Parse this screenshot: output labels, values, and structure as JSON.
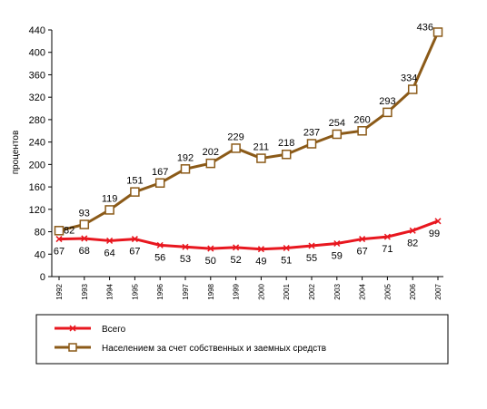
{
  "chart_data": {
    "type": "line",
    "title": "",
    "xlabel": "",
    "ylabel": "процентов",
    "x": [
      "1992",
      "1993",
      "1994",
      "1995",
      "1996",
      "1997",
      "1998",
      "1999",
      "2000",
      "2001",
      "2002",
      "2003",
      "2004",
      "2005",
      "2006",
      "2007"
    ],
    "y_ticks": [
      0,
      40,
      80,
      120,
      160,
      200,
      240,
      280,
      320,
      360,
      400,
      440
    ],
    "ylim": [
      0,
      440
    ],
    "grid": false,
    "legend_position": "bottom",
    "series": [
      {
        "name": "Всего",
        "color": "#e8171f",
        "marker": "x",
        "values": [
          67,
          68,
          64,
          67,
          56,
          53,
          50,
          52,
          49,
          51,
          55,
          59,
          67,
          71,
          82,
          99
        ],
        "labels": [
          "67",
          "68",
          "64",
          "67",
          "56",
          "53",
          "50",
          "52",
          "49",
          "51",
          "55",
          "59",
          "67",
          "71",
          "82",
          "99"
        ]
      },
      {
        "name": "Населением за счет собственных и заемных средств",
        "color": "#8b5a18",
        "marker": "square",
        "values": [
          82,
          93,
          119,
          151,
          167,
          192,
          202,
          229,
          211,
          218,
          237,
          254,
          260,
          293,
          334,
          436
        ],
        "labels": [
          "82",
          "93",
          "119",
          "151",
          "167",
          "192",
          "202",
          "229",
          "211",
          "218",
          "237",
          "254",
          "260",
          "293",
          "334",
          "436"
        ]
      }
    ]
  }
}
